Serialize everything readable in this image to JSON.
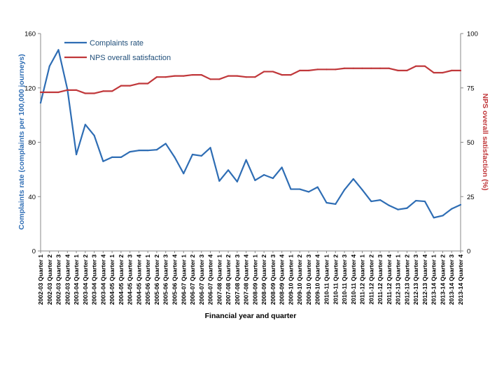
{
  "chart_data": {
    "type": "line",
    "xlabel": "Financial year and quarter",
    "ylabel": "Complaints rate (complaints per 100,000 journeys)",
    "y2label": "NPS overall satisfaction (%)",
    "ylim": [
      0,
      160
    ],
    "y2lim": [
      0,
      100
    ],
    "yticks": [
      "0",
      "40",
      "80",
      "120",
      "160"
    ],
    "y2ticks": [
      "0",
      "25",
      "50",
      "75",
      "100"
    ],
    "grid": false,
    "legend_placement": "top-left",
    "categories": [
      "2002-03 Quarter 1",
      "2002-03 Quarter 2",
      "2002-03 Quarter 3",
      "2002-03 Quarter 4",
      "2003-04 Quarter 1",
      "2003-04 Quarter 2",
      "2003-04 Quarter 3",
      "2003-04 Quarter 4",
      "2004-05 Quarter 1",
      "2004-05 Quarter 2",
      "2004-05 Quarter 3",
      "2004-05 Quarter 4",
      "2005-06 Quarter 1",
      "2005-06 Quarter 2",
      "2005-06 Quarter 3",
      "2005-06 Quarter 4",
      "2006-07 Quarter 1",
      "2006-07 Quarter 2",
      "2006-07 Quarter 3",
      "2006-07 Quarter 4",
      "2007-08 Quarter 1",
      "2007-08 Quarter 2",
      "2007-08 Quarter 3",
      "2007-08 Quarter 4",
      "2008-09 Quarter 1",
      "2008-09 Quarter 2",
      "2008-09 Quarter 3",
      "2008-09 Quarter 4",
      "2009-10 Quarter 1",
      "2009-10 Quarter 2",
      "2009-10 Quarter 3",
      "2009-10 Quarter 4",
      "2010-11 Quarter 1",
      "2010-11 Quarter 2",
      "2010-11 Quarter 3",
      "2010-11 Quarter 4",
      "2011-12 Quarter 1",
      "2011-12 Quarter 2",
      "2011-12 Quarter 3",
      "2011-12 Quarter 4",
      "2012-13 Quarter 1",
      "2012-13 Quarter 2",
      "2012-13 Quarter 3",
      "2012-13 Quarter 4",
      "2013-14 Quarter 1",
      "2013-14 Quarter 2",
      "2013-14 Quarter 3",
      "2013-14 Quarter 4"
    ],
    "series": [
      {
        "name": "Complaints rate",
        "axis": "left",
        "color": "#2e6db4",
        "values": [
          109,
          136,
          148,
          119,
          71,
          93,
          85,
          66,
          69,
          69,
          73,
          74,
          74,
          74.5,
          79,
          69,
          57,
          71,
          70,
          76,
          51.5,
          59.5,
          51,
          67,
          52,
          56,
          53.5,
          61.5,
          45.5,
          45.5,
          43.5,
          47,
          35.5,
          34.5,
          45,
          53,
          45,
          36.5,
          37.5,
          33.5,
          30.5,
          31.5,
          37,
          36.5,
          24.5,
          26,
          31,
          34
        ]
      },
      {
        "name": "NPS overall satisfaction",
        "axis": "right",
        "color": "#c0373a",
        "values": [
          73,
          73,
          73,
          74,
          74,
          72.5,
          72.5,
          73.5,
          73.5,
          76,
          76,
          77,
          77,
          80,
          80,
          80.5,
          80.5,
          81,
          81,
          79,
          79,
          80.5,
          80.5,
          80,
          80,
          82.5,
          82.5,
          81,
          81,
          83,
          83,
          83.5,
          83.5,
          83.5,
          84,
          84,
          84,
          84,
          84,
          84,
          83,
          83,
          85,
          85,
          82,
          82,
          83,
          83
        ]
      }
    ]
  }
}
